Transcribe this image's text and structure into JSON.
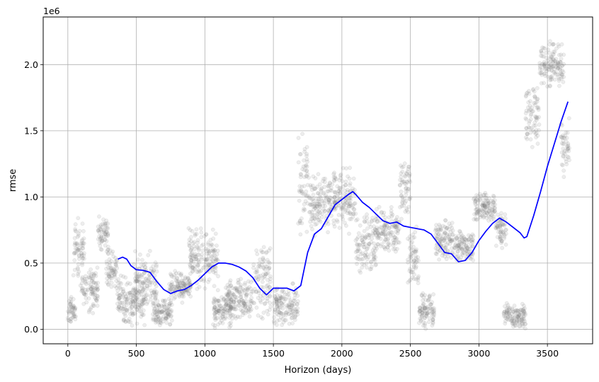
{
  "chart_data": {
    "type": "line",
    "title": "",
    "xlabel": "Horizon (days)",
    "ylabel": "rmse",
    "y_offset_label": "1e6",
    "xlim": [
      -180,
      3830
    ],
    "ylim": [
      -110000,
      2360000
    ],
    "x_ticks": [
      0,
      500,
      1000,
      1500,
      2000,
      2500,
      3000,
      3500
    ],
    "x_tick_labels": [
      "0",
      "500",
      "1000",
      "1500",
      "2000",
      "2500",
      "3000",
      "3500"
    ],
    "y_ticks": [
      0,
      500000,
      1000000,
      1500000,
      2000000
    ],
    "y_tick_labels": [
      "0.0",
      "0.5",
      "1.0",
      "1.5",
      "2.0"
    ],
    "grid": true,
    "series": [
      {
        "role": "rolling-mean line",
        "color": "#0000ff",
        "x": [
          365,
          400,
          430,
          460,
          500,
          550,
          600,
          650,
          700,
          750,
          800,
          850,
          900,
          950,
          1000,
          1050,
          1100,
          1150,
          1200,
          1250,
          1300,
          1350,
          1400,
          1450,
          1500,
          1550,
          1600,
          1650,
          1700,
          1750,
          1800,
          1850,
          1900,
          1950,
          2000,
          2050,
          2080,
          2100,
          2150,
          2200,
          2250,
          2300,
          2350,
          2400,
          2450,
          2500,
          2550,
          2600,
          2650,
          2700,
          2750,
          2800,
          2850,
          2900,
          2950,
          3000,
          3050,
          3100,
          3150,
          3200,
          3250,
          3300,
          3330,
          3350,
          3400,
          3450,
          3500,
          3550,
          3600,
          3650
        ],
        "y": [
          530000,
          545000,
          530000,
          480000,
          450000,
          445000,
          430000,
          360000,
          300000,
          270000,
          290000,
          300000,
          330000,
          370000,
          420000,
          470000,
          500000,
          500000,
          490000,
          470000,
          440000,
          390000,
          310000,
          260000,
          310000,
          310000,
          310000,
          290000,
          330000,
          580000,
          720000,
          760000,
          850000,
          940000,
          980000,
          1020000,
          1040000,
          1020000,
          960000,
          920000,
          870000,
          820000,
          800000,
          810000,
          780000,
          770000,
          760000,
          750000,
          720000,
          650000,
          580000,
          570000,
          510000,
          520000,
          580000,
          670000,
          740000,
          800000,
          840000,
          810000,
          770000,
          730000,
          690000,
          700000,
          860000,
          1040000,
          1230000,
          1400000,
          1570000,
          1720000
        ]
      },
      {
        "role": "per-horizon points",
        "color": "#808080",
        "clusters": [
          {
            "x": [
              0,
              60
            ],
            "y": [
              0,
              250000
            ]
          },
          {
            "x": [
              40,
              130
            ],
            "y": [
              300000,
              900000
            ]
          },
          {
            "x": [
              100,
              220
            ],
            "y": [
              100000,
              500000
            ]
          },
          {
            "x": [
              220,
              300
            ],
            "y": [
              550000,
              880000
            ]
          },
          {
            "x": [
              280,
              360
            ],
            "y": [
              300000,
              600000
            ]
          },
          {
            "x": [
              360,
              560
            ],
            "y": [
              0,
              450000
            ]
          },
          {
            "x": [
              480,
              650
            ],
            "y": [
              100000,
              600000
            ]
          },
          {
            "x": [
              620,
              760
            ],
            "y": [
              0,
              250000
            ]
          },
          {
            "x": [
              740,
              900
            ],
            "y": [
              200000,
              450000
            ]
          },
          {
            "x": [
              880,
              1100
            ],
            "y": [
              300000,
              800000
            ]
          },
          {
            "x": [
              1060,
              1200
            ],
            "y": [
              0,
              300000
            ]
          },
          {
            "x": [
              1150,
              1350
            ],
            "y": [
              50000,
              400000
            ]
          },
          {
            "x": [
              1350,
              1480
            ],
            "y": [
              50000,
              700000
            ]
          },
          {
            "x": [
              1500,
              1680
            ],
            "y": [
              0,
              350000
            ]
          },
          {
            "x": [
              1680,
              1760
            ],
            "y": [
              600000,
              1550000
            ]
          },
          {
            "x": [
              1760,
              1960
            ],
            "y": [
              700000,
              1200000
            ]
          },
          {
            "x": [
              1940,
              2100
            ],
            "y": [
              700000,
              1250000
            ]
          },
          {
            "x": [
              2100,
              2250
            ],
            "y": [
              400000,
              900000
            ]
          },
          {
            "x": [
              2250,
              2420
            ],
            "y": [
              550000,
              950000
            ]
          },
          {
            "x": [
              2420,
              2500
            ],
            "y": [
              800000,
              1300000
            ]
          },
          {
            "x": [
              2480,
              2560
            ],
            "y": [
              300000,
              800000
            ]
          },
          {
            "x": [
              2560,
              2680
            ],
            "y": [
              0,
              300000
            ]
          },
          {
            "x": [
              2680,
              2820
            ],
            "y": [
              500000,
              850000
            ]
          },
          {
            "x": [
              2820,
              2960
            ],
            "y": [
              500000,
              750000
            ]
          },
          {
            "x": [
              2960,
              3120
            ],
            "y": [
              800000,
              1050000
            ]
          },
          {
            "x": [
              3120,
              3200
            ],
            "y": [
              600000,
              900000
            ]
          },
          {
            "x": [
              3180,
              3340
            ],
            "y": [
              0,
              200000
            ]
          },
          {
            "x": [
              3340,
              3440
            ],
            "y": [
              1300000,
              1900000
            ]
          },
          {
            "x": [
              3440,
              3620
            ],
            "y": [
              1800000,
              2200000
            ]
          },
          {
            "x": [
              3600,
              3660
            ],
            "y": [
              1100000,
              1600000
            ]
          }
        ]
      }
    ]
  }
}
